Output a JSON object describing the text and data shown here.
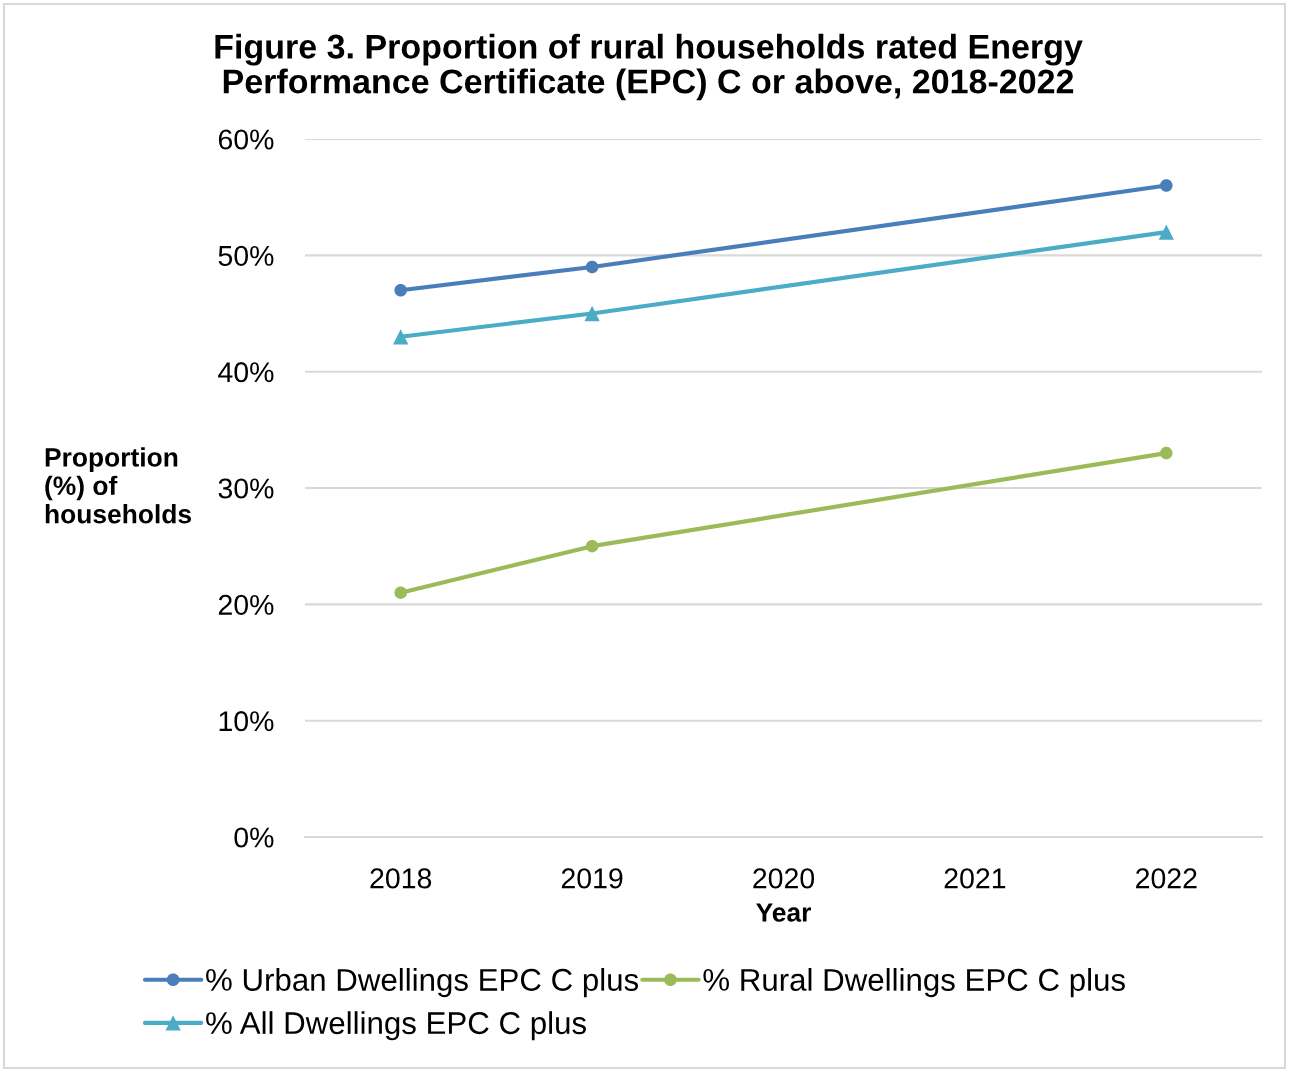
{
  "chart_data": {
    "type": "line",
    "title": "Figure 3. Proportion of rural households rated Energy\nPerformance Certificate (EPC) C or above, 2018-2022",
    "xlabel": "Year",
    "ylabel": "Proportion\n(%) of\nhouseholds",
    "xlim": [
      2017.5,
      2022.5
    ],
    "xticks": [
      2018,
      2019,
      2020,
      2021,
      2022
    ],
    "ylim": [
      0,
      60
    ],
    "yticks": [
      {
        "value": 0,
        "label": "0%"
      },
      {
        "value": 10,
        "label": "10%"
      },
      {
        "value": 20,
        "label": "20%"
      },
      {
        "value": 30,
        "label": "30%"
      },
      {
        "value": 40,
        "label": "40%"
      },
      {
        "value": 50,
        "label": "50%"
      },
      {
        "value": 60,
        "label": "60%"
      }
    ],
    "grid": "y",
    "legend": "bottom",
    "line_style": "solid",
    "series": [
      {
        "name": "% Urban Dwellings EPC C plus",
        "color": "#4a7ebb",
        "marker": "circle",
        "x": [
          2018,
          2019,
          2022
        ],
        "values": [
          47,
          49,
          56
        ]
      },
      {
        "name": "% Rural Dwellings EPC C plus",
        "color": "#9bbb59",
        "marker": "circle",
        "x": [
          2018,
          2019,
          2022
        ],
        "values": [
          21,
          25,
          33
        ]
      },
      {
        "name": "% All Dwellings EPC C plus",
        "color": "#4bacc6",
        "marker": "triangle",
        "x": [
          2018,
          2019,
          2022
        ],
        "values": [
          43,
          45,
          52
        ]
      }
    ]
  }
}
